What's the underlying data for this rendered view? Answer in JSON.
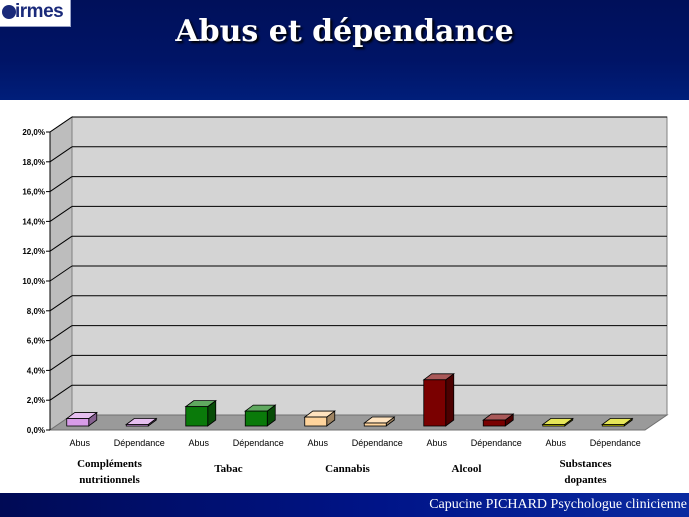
{
  "header": {
    "logo_text": "irmes",
    "title": "Abus et dépendance"
  },
  "footer": {
    "credit": "Capucine PICHARD Psychologue clinicienne"
  },
  "chart_data": {
    "type": "bar",
    "style": "3d-clustered",
    "ylim": [
      0,
      20
    ],
    "y_ticks": [
      "0,0%",
      "2,0%",
      "4,0%",
      "6,0%",
      "8,0%",
      "10,0%",
      "12,0%",
      "14,0%",
      "16,0%",
      "18,0%",
      "20,0%"
    ],
    "grid": true,
    "groups": [
      {
        "name_lines": [
          "Compléments",
          "nutritionnels"
        ],
        "color": "#d89ce8",
        "bars": [
          {
            "label": "Abus",
            "value": 0.5
          },
          {
            "label": "Dépendance",
            "value": 0.1
          }
        ]
      },
      {
        "name_lines": [
          "Tabac"
        ],
        "color": "#0a7a0a",
        "bars": [
          {
            "label": "Abus",
            "value": 1.3
          },
          {
            "label": "Dépendance",
            "value": 1.0
          }
        ]
      },
      {
        "name_lines": [
          "Cannabis"
        ],
        "color": "#ffd49c",
        "bars": [
          {
            "label": "Abus",
            "value": 0.6
          },
          {
            "label": "Dépendance",
            "value": 0.2
          }
        ]
      },
      {
        "name_lines": [
          "Alcool"
        ],
        "color": "#7a0000",
        "bars": [
          {
            "label": "Abus",
            "value": 3.1
          },
          {
            "label": "Dépendance",
            "value": 0.4
          }
        ]
      },
      {
        "name_lines": [
          "Substances",
          "dopantes"
        ],
        "color": "#d8d800",
        "bars": [
          {
            "label": "Abus",
            "value": 0.05
          },
          {
            "label": "Dépendance",
            "value": 0.05
          }
        ]
      }
    ]
  }
}
